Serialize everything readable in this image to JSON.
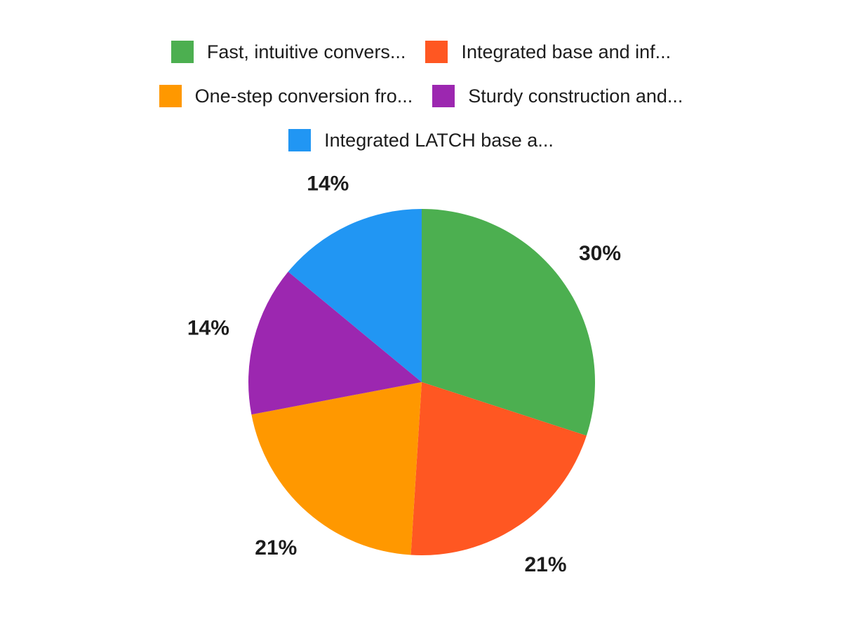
{
  "chart_data": {
    "type": "pie",
    "title": "",
    "background_color": "#FFFFFF",
    "label_text_color": "#1D1D1D",
    "legend_position": "top",
    "direction": "clockwise",
    "start_angle_deg": 0,
    "slices": [
      {
        "label": "Fast, intuitive convers...",
        "value": 30,
        "display": "30%",
        "color": "#4CAF50"
      },
      {
        "label": "Integrated base and inf...",
        "value": 21,
        "display": "21%",
        "color": "#FF5722"
      },
      {
        "label": "One-step conversion fro...",
        "value": 21,
        "display": "21%",
        "color": "#FF9800"
      },
      {
        "label": "Sturdy construction and...",
        "value": 14,
        "display": "14%",
        "color": "#9C27B0"
      },
      {
        "label": "Integrated LATCH base a...",
        "value": 14,
        "display": "14%",
        "color": "#2196F3"
      }
    ],
    "legend_rows": [
      [
        0,
        1
      ],
      [
        2,
        3
      ],
      [
        4
      ]
    ]
  }
}
